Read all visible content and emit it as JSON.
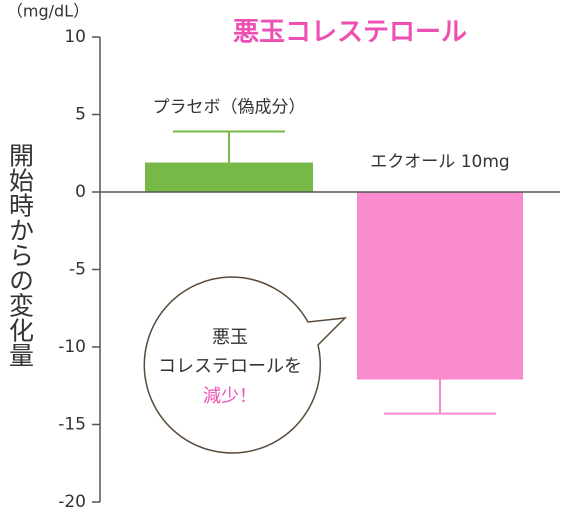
{
  "chart_data": {
    "type": "bar",
    "title": "悪玉コレステロール",
    "unit_label": "（mg/dL）",
    "y_label": "開始時からの変化量",
    "categories": [
      "プラセボ（偽成分）",
      "エクオール 10mg"
    ],
    "values": [
      1.9,
      -12.1
    ],
    "errors": [
      2.0,
      2.2
    ],
    "colors": [
      "#76b947",
      "#f78bce"
    ],
    "ylim": [
      -20,
      10
    ],
    "yticks": [
      10,
      5,
      0,
      -5,
      -10,
      -15,
      -20
    ],
    "annotation": [
      "悪玉",
      "コレステロールを",
      "減少！"
    ],
    "annotation_colors": [
      "#333333",
      "#333333",
      "#ee4fb3"
    ]
  }
}
